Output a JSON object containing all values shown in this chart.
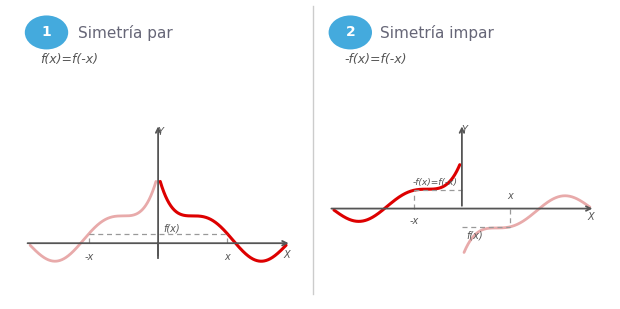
{
  "bg_color": "#ffffff",
  "title1": "Simetría par",
  "title2": "Simetría impar",
  "formula1": "f(x)=f(-x)",
  "formula2": "-f(x)=f(-x)",
  "red_color": "#dd0000",
  "pink_color": "#e8aaaa",
  "axis_color": "#555555",
  "dashed_color": "#999999",
  "text_color": "#555555",
  "badge_color_top": "#55ccee",
  "badge_color_bot": "#2299cc",
  "divider_color": "#cccccc",
  "title_color": "#666677",
  "title_fontsize": 11,
  "formula_fontsize": 9
}
